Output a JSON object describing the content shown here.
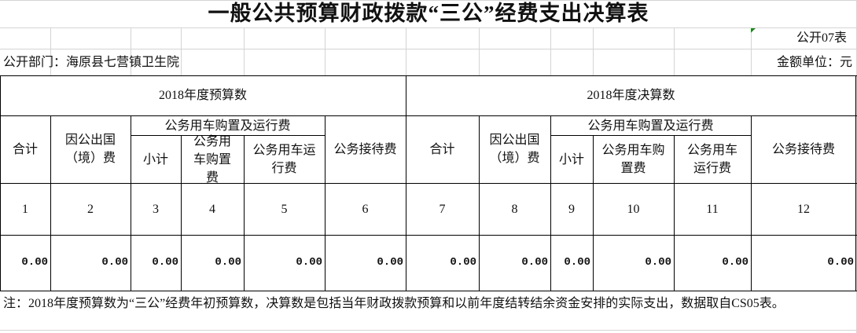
{
  "title": "一般公共预算财政拨款“三公”经费支出决算表",
  "table_code": "公开07表",
  "department": "公开部门：海原县七营镇卫生院",
  "unit": "金额单位：元",
  "groups": {
    "budget": "2018年度预算数",
    "final": "2018年度决算数"
  },
  "headers": {
    "total": "合计",
    "abroad": "因公出国（境）费",
    "vehicle_group": "公务用车购置及运行费",
    "subtotal": "小计",
    "vehicle_purchase": "公务用车购置费",
    "vehicle_operation": "公务用车运行费",
    "reception": "公务接待费"
  },
  "column_numbers": [
    "1",
    "2",
    "3",
    "4",
    "5",
    "6",
    "7",
    "8",
    "9",
    "10",
    "11",
    "12"
  ],
  "values": [
    "0.00",
    "0.00",
    "0.00",
    "0.00",
    "0.00",
    "0.00",
    "0.00",
    "0.00",
    "0.00",
    "0.00",
    "0.00",
    "0.00"
  ],
  "note": "注：2018年度预算数为“三公”经费年初预算数，决算数是包括当年财政拨款预算和以前年度结转结余资金安排的实际支出，数据取自CS05表。"
}
